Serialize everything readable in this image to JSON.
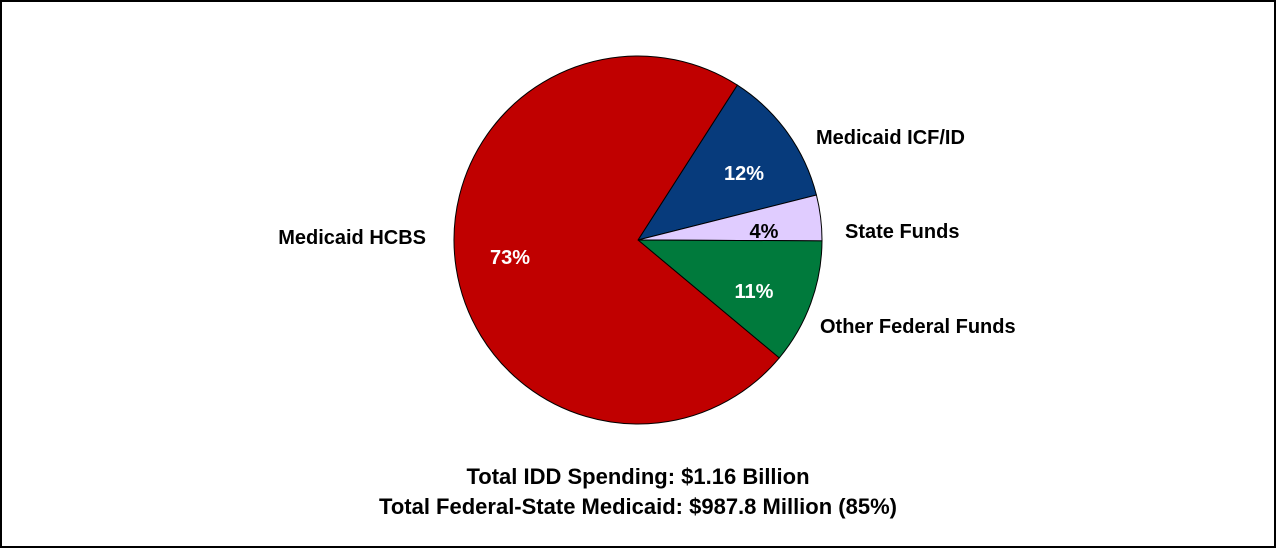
{
  "chart_data": {
    "type": "pie",
    "slices": [
      {
        "label": "Medicaid ICF/ID",
        "value": 12,
        "value_label": "12%",
        "color": "#073b7c",
        "text_color": "#ffffff"
      },
      {
        "label": "State Funds",
        "value": 4,
        "value_label": "4%",
        "color": "#e0ccff",
        "text_color": "#000000"
      },
      {
        "label": "Other Federal Funds",
        "value": 11,
        "value_label": "11%",
        "color": "#007a3c",
        "text_color": "#ffffff"
      },
      {
        "label": "Medicaid HCBS",
        "value": 73,
        "value_label": "73%",
        "color": "#c00000",
        "text_color": "#ffffff"
      }
    ]
  },
  "footer": {
    "line1": "Total IDD Spending: $1.16 Billion",
    "line2": "Total Federal-State Medicaid: $987.8 Million (85%)"
  }
}
